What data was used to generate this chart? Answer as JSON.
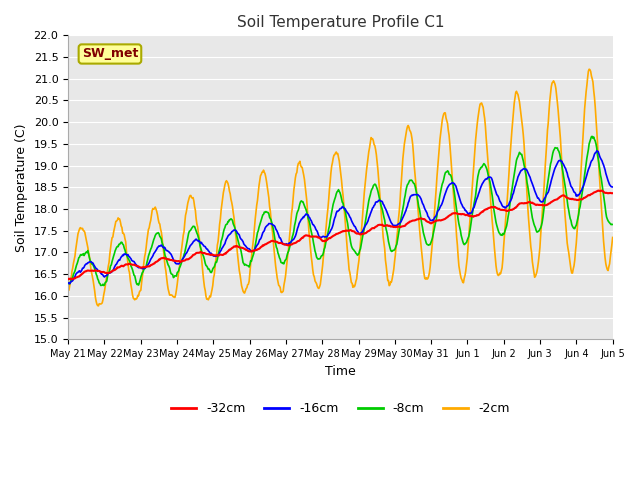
{
  "title": "Soil Temperature Profile C1",
  "xlabel": "Time",
  "ylabel": "Soil Temperature (C)",
  "ylim": [
    15.0,
    22.0
  ],
  "yticks": [
    15.0,
    15.5,
    16.0,
    16.5,
    17.0,
    17.5,
    18.0,
    18.5,
    19.0,
    19.5,
    20.0,
    20.5,
    21.0,
    21.5,
    22.0
  ],
  "fig_bg_color": "#ffffff",
  "plot_bg_color": "#e8e8e8",
  "grid_color": "#d0d0d0",
  "annotation_text": "SW_met",
  "annotation_bg": "#ffff99",
  "annotation_fg": "#800000",
  "annotation_border": "#aaaa00",
  "colors": {
    "-32cm": "#ff0000",
    "-16cm": "#0000ff",
    "-8cm": "#00cc00",
    "-2cm": "#ffaa00"
  },
  "x_tick_labels": [
    "May 21",
    "May 22",
    "May 23",
    "May 24",
    "May 25",
    "May 26",
    "May 27",
    "May 28",
    "May 29",
    "May 30",
    "May 31",
    "Jun 1",
    "Jun 2",
    "Jun 3",
    "Jun 4",
    "Jun 5"
  ],
  "num_days": 15,
  "n_points": 720
}
